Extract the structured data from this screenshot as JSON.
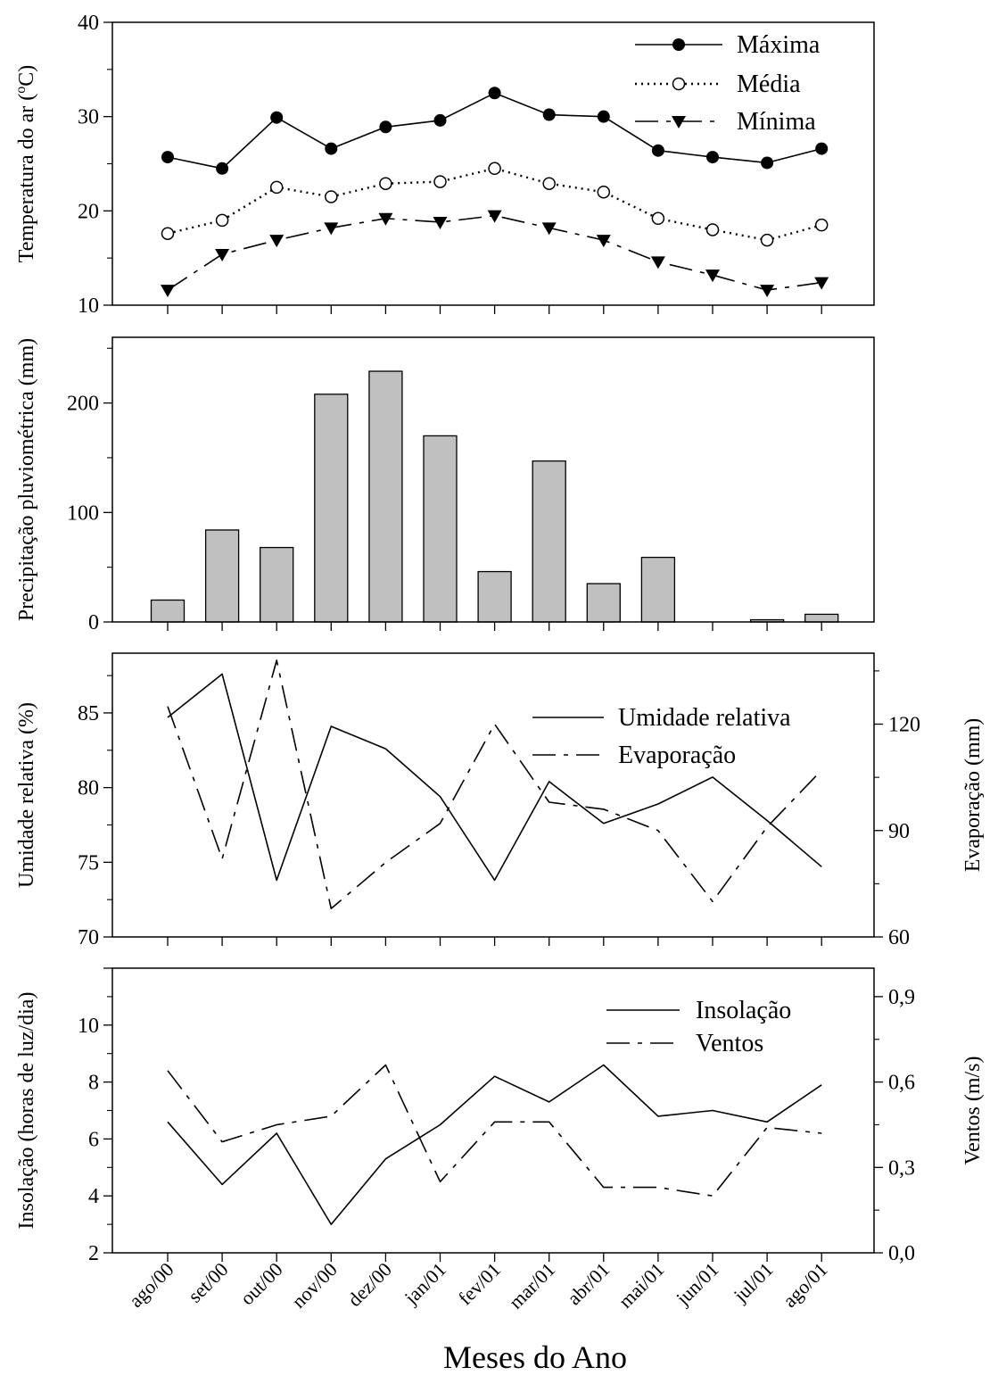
{
  "chart_data": [
    {
      "type": "line",
      "categories": [
        "ago/00",
        "set/00",
        "out/00",
        "nov/00",
        "dez/00",
        "jan/01",
        "fev/01",
        "mar/01",
        "abr/01",
        "mai/01",
        "jun/01",
        "jul/01",
        "ago/01"
      ],
      "ylabel": "Temperatura do ar (oC)",
      "ylabel_main": "Temperatura do ar (",
      "ylabel_sup": "o",
      "ylabel_tail": "C)",
      "ylim": [
        10,
        40
      ],
      "yticks": [
        10,
        20,
        30,
        40
      ],
      "legend_position": "top-right",
      "series": [
        {
          "name": "Máxima",
          "marker": "filled-circle",
          "line": "solid",
          "values": [
            25.7,
            24.5,
            29.9,
            26.6,
            28.9,
            29.6,
            32.5,
            30.2,
            30.0,
            26.4,
            25.7,
            25.1,
            26.6
          ]
        },
        {
          "name": "Média",
          "marker": "open-circle",
          "line": "dotted",
          "values": [
            17.6,
            19.0,
            22.5,
            21.5,
            22.9,
            23.1,
            24.5,
            22.9,
            22.0,
            19.2,
            18.0,
            16.9,
            18.5
          ]
        },
        {
          "name": "Mínima",
          "marker": "filled-triangle-down",
          "line": "long-dash",
          "values": [
            11.6,
            15.4,
            16.9,
            18.2,
            19.2,
            18.8,
            19.5,
            18.2,
            16.9,
            14.6,
            13.2,
            11.6,
            12.4
          ]
        }
      ]
    },
    {
      "type": "bar",
      "categories": [
        "ago/00",
        "set/00",
        "out/00",
        "nov/00",
        "dez/00",
        "jan/01",
        "fev/01",
        "mar/01",
        "abr/01",
        "mai/01",
        "jun/01",
        "jul/01",
        "ago/01"
      ],
      "ylabel": "Precipitação pluviométrica (mm)",
      "ylim": [
        0,
        260
      ],
      "yticks": [
        0,
        100,
        200
      ],
      "bar_color": "#c0c0c0",
      "values": [
        20,
        84,
        68,
        208,
        229,
        170,
        46,
        147,
        35,
        59,
        0,
        2,
        7
      ]
    },
    {
      "type": "line",
      "categories": [
        "ago/00",
        "set/00",
        "out/00",
        "nov/00",
        "dez/00",
        "jan/01",
        "fev/01",
        "mar/01",
        "abr/01",
        "mai/01",
        "jun/01",
        "jul/01",
        "ago/01"
      ],
      "ylabel": "Umidade relativa (%)",
      "ylim": [
        70,
        89
      ],
      "yticks": [
        70,
        75,
        80,
        85
      ],
      "y2label": "Evaporação (mm)",
      "y2lim": [
        60,
        140
      ],
      "y2ticks": [
        60,
        90,
        120
      ],
      "legend_position": "top-right",
      "series": [
        {
          "name": "Umidade relativa",
          "axis": "left",
          "line": "solid",
          "values": [
            84.7,
            87.6,
            73.8,
            84.1,
            82.6,
            79.4,
            73.8,
            80.4,
            77.6,
            78.9,
            80.7,
            77.8,
            74.7
          ]
        },
        {
          "name": "Evaporação",
          "axis": "right",
          "line": "long-dash",
          "values": [
            125,
            82,
            138,
            68,
            81,
            92,
            120,
            98,
            96,
            90,
            70,
            91,
            107
          ]
        }
      ]
    },
    {
      "type": "line",
      "categories": [
        "ago/00",
        "set/00",
        "out/00",
        "nov/00",
        "dez/00",
        "jan/01",
        "fev/01",
        "mar/01",
        "abr/01",
        "mai/01",
        "jun/01",
        "jul/01",
        "ago/01"
      ],
      "ylabel": "Insolação (horas de luz/dia)",
      "ylim": [
        2,
        12
      ],
      "yticks": [
        2,
        4,
        6,
        8,
        10
      ],
      "y2label": "Ventos (m/s)",
      "y2lim": [
        0.0,
        1.0
      ],
      "y2ticks": [
        "0,0",
        "0,3",
        "0,6",
        "0,9"
      ],
      "legend_position": "top-right",
      "series": [
        {
          "name": "Insolação",
          "axis": "left",
          "line": "solid",
          "values": [
            6.6,
            4.4,
            6.2,
            3.0,
            5.3,
            6.5,
            8.2,
            7.3,
            8.6,
            6.8,
            7.0,
            6.6,
            7.9
          ]
        },
        {
          "name": "Ventos",
          "axis": "right",
          "line": "long-dash",
          "values": [
            0.64,
            0.39,
            0.45,
            0.48,
            0.66,
            0.25,
            0.46,
            0.46,
            0.23,
            0.23,
            0.2,
            0.44,
            0.42
          ]
        }
      ]
    }
  ],
  "xlabel": "Meses do Ano"
}
